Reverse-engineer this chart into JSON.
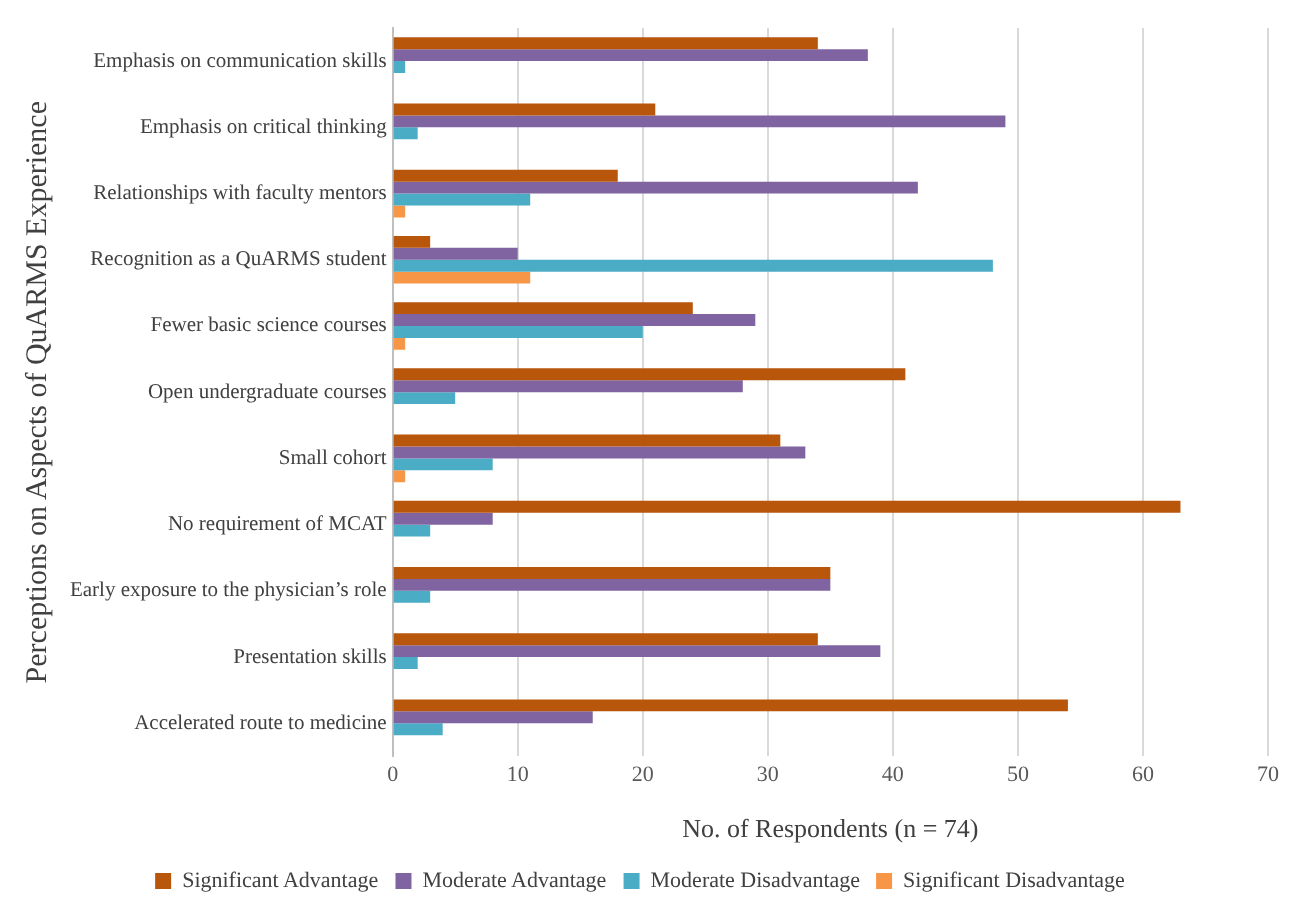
{
  "chart_data": {
    "type": "bar",
    "orientation": "horizontal",
    "xlabel": "No. of Respondents (n = 74)",
    "ylabel": "Perceptions on Aspects of QuARMS Experience",
    "categories": [
      "Emphasis on communication skills",
      "Emphasis on critical thinking",
      "Relationships with faculty mentors",
      "Recognition as a QuARMS student",
      "Fewer basic science courses",
      "Open undergraduate courses",
      "Small cohort",
      "No requirement of MCAT",
      "Early exposure to the physician’s role",
      "Presentation skills",
      "Accelerated route to medicine"
    ],
    "series": [
      {
        "name": "Significant Advantage",
        "color": "#b8560b",
        "values": [
          34,
          21,
          18,
          3,
          24,
          41,
          31,
          63,
          35,
          34,
          54
        ]
      },
      {
        "name": "Moderate Advantage",
        "color": "#8064a2",
        "values": [
          38,
          49,
          42,
          10,
          29,
          28,
          33,
          8,
          35,
          39,
          16
        ]
      },
      {
        "name": "Moderate Disadvantage",
        "color": "#4bacc6",
        "values": [
          1,
          2,
          11,
          48,
          20,
          5,
          8,
          3,
          3,
          2,
          4
        ]
      },
      {
        "name": "Significant Disadvantage",
        "color": "#f79646",
        "values": [
          0,
          0,
          1,
          11,
          1,
          0,
          1,
          0,
          0,
          0,
          0
        ]
      }
    ],
    "xlim": [
      0,
      70
    ],
    "xticks": [
      0,
      10,
      20,
      30,
      40,
      50,
      60,
      70
    ],
    "grid": "x",
    "legend": "bottom"
  }
}
